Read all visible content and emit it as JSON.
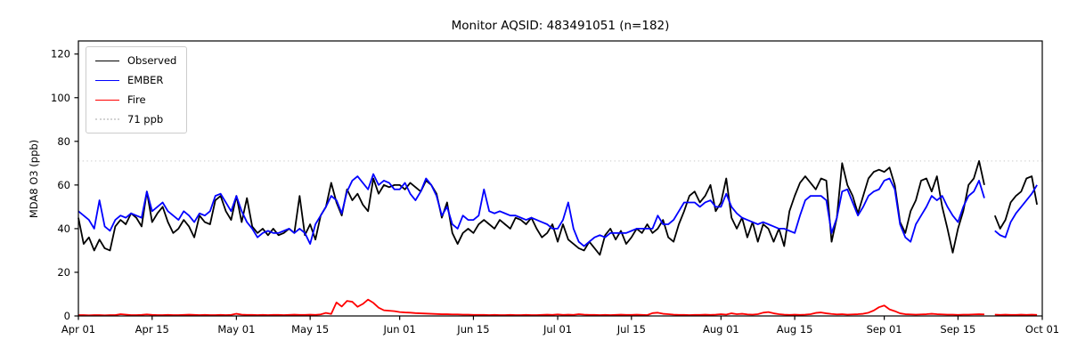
{
  "title": "Monitor AQSID: 483491051 (n=182)",
  "axes": {
    "ylabel": "MDA8 O3 (ppb)"
  },
  "legend": {
    "position": "upper left",
    "items": [
      {
        "label": "Observed",
        "color": "#000000",
        "style": "solid"
      },
      {
        "label": "EMBER",
        "color": "#0000ff",
        "style": "solid"
      },
      {
        "label": "Fire",
        "color": "#ff0000",
        "style": "solid"
      },
      {
        "label": "71 ppb",
        "color": "#d3d3d3",
        "style": "dotted"
      }
    ]
  },
  "chart_data": {
    "type": "line",
    "title": "Monitor AQSID: 483491051 (n=182)",
    "xlabel": "",
    "ylabel": "MDA8 O3 (ppb)",
    "ylim": [
      0,
      126
    ],
    "yticks": [
      0,
      20,
      40,
      60,
      80,
      100,
      120
    ],
    "grid": false,
    "legend_position": "upper left",
    "x_unit": "day index from Apr 01",
    "start_date": "Apr 01",
    "end_date": "Oct 01",
    "days_total": 183,
    "n_points": 182,
    "missing_day": {
      "index": 173,
      "date": "Sep 21"
    },
    "threshold": {
      "value": 71,
      "label": "71 ppb",
      "color": "#d3d3d3",
      "linestyle": "dotted"
    },
    "xticks": [
      {
        "day": 0,
        "label": "Apr 01"
      },
      {
        "day": 14,
        "label": "Apr 15"
      },
      {
        "day": 30,
        "label": "May 01"
      },
      {
        "day": 44,
        "label": "May 15"
      },
      {
        "day": 61,
        "label": "Jun 01"
      },
      {
        "day": 75,
        "label": "Jun 15"
      },
      {
        "day": 91,
        "label": "Jul 01"
      },
      {
        "day": 105,
        "label": "Jul 15"
      },
      {
        "day": 122,
        "label": "Aug 01"
      },
      {
        "day": 136,
        "label": "Aug 15"
      },
      {
        "day": 153,
        "label": "Sep 01"
      },
      {
        "day": 167,
        "label": "Sep 15"
      },
      {
        "day": 183,
        "label": "Oct 01"
      }
    ],
    "series": [
      {
        "name": "Observed",
        "color": "#000000",
        "linestyle": "solid",
        "values": [
          45,
          33,
          36,
          30,
          35,
          31,
          30,
          41,
          44,
          42,
          47,
          45,
          41,
          57,
          43,
          47,
          50,
          43,
          38,
          40,
          44,
          41,
          36,
          46,
          43,
          42,
          53,
          55,
          48,
          44,
          55,
          43,
          54,
          41,
          38,
          40,
          37,
          40,
          37,
          38,
          40,
          38,
          55,
          37,
          42,
          35,
          46,
          50,
          61,
          52,
          46,
          58,
          53,
          56,
          51,
          48,
          63,
          56,
          60,
          59,
          60,
          60,
          58,
          61,
          59,
          57,
          62,
          60,
          56,
          45,
          52,
          38,
          33,
          38,
          40,
          38,
          42,
          44,
          42,
          40,
          44,
          42,
          40,
          45,
          44,
          42,
          45,
          40,
          36,
          38,
          42,
          34,
          42,
          35,
          33,
          31,
          30,
          34,
          31,
          28,
          37,
          40,
          35,
          39,
          33,
          36,
          40,
          38,
          42,
          38,
          40,
          44,
          36,
          34,
          42,
          48,
          55,
          57,
          52,
          55,
          60,
          48,
          52,
          63,
          45,
          40,
          45,
          36,
          43,
          34,
          42,
          40,
          34,
          40,
          32,
          48,
          55,
          61,
          64,
          61,
          58,
          63,
          62,
          34,
          45,
          70,
          60,
          55,
          47,
          55,
          63,
          66,
          67,
          66,
          68,
          60,
          43,
          38,
          48,
          53,
          62,
          63,
          57,
          64,
          50,
          40,
          29,
          40,
          48,
          60,
          63,
          71,
          60,
          null,
          46,
          40,
          44,
          52,
          55,
          57,
          63,
          64,
          51
        ]
      },
      {
        "name": "EMBER",
        "color": "#0000ff",
        "linestyle": "solid",
        "values": [
          48,
          46,
          44,
          40,
          53,
          41,
          39,
          44,
          46,
          45,
          47,
          46,
          45,
          57,
          48,
          50,
          52,
          48,
          46,
          44,
          48,
          46,
          43,
          47,
          46,
          48,
          55,
          56,
          52,
          48,
          55,
          48,
          43,
          40,
          36,
          38,
          39,
          38,
          38,
          39,
          40,
          38,
          40,
          38,
          33,
          42,
          46,
          50,
          55,
          53,
          47,
          57,
          62,
          64,
          61,
          58,
          65,
          60,
          62,
          61,
          58,
          58,
          61,
          56,
          53,
          57,
          63,
          60,
          55,
          46,
          50,
          42,
          40,
          46,
          44,
          44,
          46,
          58,
          48,
          47,
          48,
          47,
          46,
          46,
          45,
          44,
          45,
          44,
          43,
          42,
          40,
          40,
          44,
          52,
          40,
          34,
          32,
          34,
          36,
          37,
          36,
          38,
          38,
          38,
          38,
          39,
          40,
          40,
          40,
          40,
          46,
          42,
          42,
          44,
          48,
          52,
          52,
          52,
          50,
          52,
          53,
          50,
          50,
          56,
          50,
          47,
          45,
          44,
          43,
          42,
          43,
          42,
          41,
          40,
          40,
          39,
          38,
          46,
          53,
          55,
          55,
          55,
          53,
          38,
          45,
          57,
          58,
          52,
          46,
          50,
          55,
          57,
          58,
          62,
          63,
          58,
          42,
          36,
          34,
          42,
          46,
          50,
          55,
          53,
          55,
          50,
          46,
          43,
          50,
          55,
          57,
          62,
          54,
          null,
          39,
          37,
          36,
          43,
          47,
          50,
          53,
          56,
          60
        ]
      },
      {
        "name": "Fire",
        "color": "#ff0000",
        "linestyle": "solid",
        "values": [
          0.4,
          0.4,
          0.3,
          0.4,
          0.4,
          0.3,
          0.4,
          0.4,
          0.8,
          0.6,
          0.4,
          0.4,
          0.5,
          0.7,
          0.5,
          0.4,
          0.4,
          0.5,
          0.4,
          0.4,
          0.5,
          0.6,
          0.5,
          0.4,
          0.5,
          0.4,
          0.4,
          0.5,
          0.4,
          0.5,
          1.0,
          0.6,
          0.5,
          0.5,
          0.4,
          0.5,
          0.4,
          0.5,
          0.5,
          0.4,
          0.5,
          0.6,
          0.5,
          0.5,
          0.6,
          0.5,
          0.7,
          1.4,
          0.9,
          6.2,
          4.3,
          6.9,
          6.5,
          4.2,
          5.5,
          7.5,
          6.0,
          3.8,
          2.6,
          2.4,
          2.2,
          1.8,
          1.6,
          1.5,
          1.3,
          1.2,
          1.1,
          1.0,
          0.9,
          0.8,
          0.8,
          0.7,
          0.7,
          0.6,
          0.6,
          0.5,
          0.5,
          0.5,
          0.4,
          0.5,
          0.4,
          0.4,
          0.5,
          0.4,
          0.4,
          0.5,
          0.4,
          0.4,
          0.5,
          0.6,
          0.5,
          0.7,
          0.5,
          0.6,
          0.5,
          0.8,
          0.6,
          0.5,
          0.5,
          0.4,
          0.5,
          0.4,
          0.5,
          0.6,
          0.5,
          0.5,
          0.6,
          0.5,
          0.4,
          1.3,
          1.5,
          1.0,
          0.8,
          0.6,
          0.5,
          0.5,
          0.4,
          0.5,
          0.5,
          0.6,
          0.5,
          0.6,
          0.8,
          0.6,
          1.2,
          0.8,
          1.0,
          0.7,
          0.6,
          0.8,
          1.5,
          1.8,
          1.2,
          0.8,
          0.6,
          0.5,
          0.6,
          0.5,
          0.6,
          0.8,
          1.4,
          1.6,
          1.2,
          0.9,
          0.7,
          0.8,
          0.6,
          0.7,
          0.8,
          1.0,
          1.5,
          2.5,
          4.0,
          4.8,
          3.0,
          2.2,
          1.2,
          0.8,
          0.7,
          0.6,
          0.7,
          0.8,
          1.0,
          0.8,
          0.7,
          0.6,
          0.6,
          0.5,
          0.6,
          0.6,
          0.7,
          0.8,
          0.7,
          null,
          0.6,
          0.5,
          0.6,
          0.5,
          0.5,
          0.6,
          0.5,
          0.6,
          0.5
        ]
      }
    ]
  }
}
